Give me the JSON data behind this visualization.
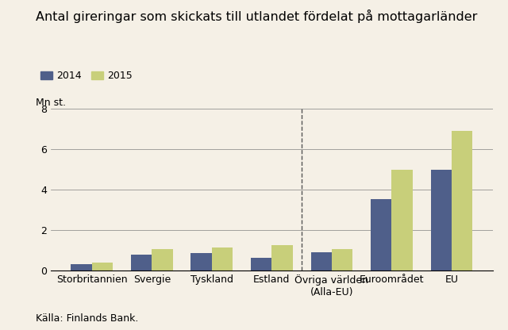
{
  "title": "Antal gireringar som skickats till utlandet fördelat på mottagarländer",
  "categories": [
    "Storbritannien",
    "Svergie",
    "Tyskland",
    "Estland",
    "Övriga världen\n(Alla-EU)",
    "Euroområdet",
    "EU"
  ],
  "values_2014": [
    0.3,
    0.8,
    0.85,
    0.65,
    0.9,
    3.55,
    5.0
  ],
  "values_2015": [
    0.4,
    1.05,
    1.15,
    1.25,
    1.05,
    5.0,
    6.9
  ],
  "color_2014": "#4F5F8A",
  "color_2015": "#C8CF7A",
  "ylabel": "Mn st.",
  "ylim": [
    0,
    8
  ],
  "yticks": [
    0,
    2,
    4,
    6,
    8
  ],
  "legend_labels": [
    "2014",
    "2015"
  ],
  "dashed_line_after_index": 3,
  "source": "Källa: Finlands Bank.",
  "background_color": "#F5F0E6",
  "title_fontsize": 11.5,
  "label_fontsize": 9,
  "tick_fontsize": 9
}
